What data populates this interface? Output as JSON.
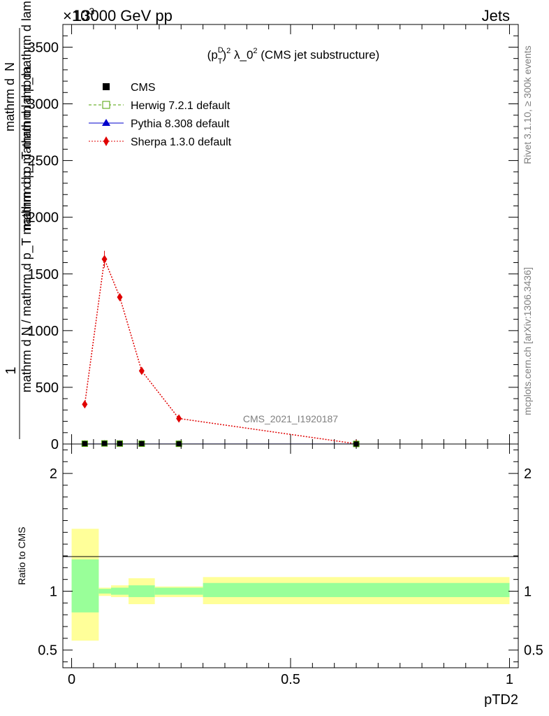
{
  "header": {
    "left": "13000 GeV pp",
    "right": "Jets",
    "exponent": "×10",
    "exponent_power": "3"
  },
  "plot_title": {
    "a": "(p",
    "sup": "D",
    "sub": "T",
    "b": ")",
    "c": "2",
    "d": " λ_0",
    "e": "2",
    "f": " (CMS jet substructure)"
  },
  "side_labels": {
    "rivet": "Rivet 3.1.10, ≥ 300k events",
    "mcplots": "mcplots.cern.ch [arXiv:1306.3436]",
    "analysis": "CMS_2021_I1920187"
  },
  "ylabel_main": {
    "numerator": "1",
    "denominator_line1": "mathrm d N / mathrm d p_T mathrm d p_mathrm d lambda",
    "mathrm_top": "mathrm d",
    "N_top": "N",
    "denominator_top": "mathrm d p_T mathrm d p_mathrm d lambda"
  },
  "ylabel_ratio": "Ratio to CMS",
  "xlabel": "pTD2",
  "legend": [
    {
      "name": "CMS",
      "color": "#000000",
      "marker": "square-filled",
      "line": "none"
    },
    {
      "name": "Herwig 7.2.1 default",
      "color": "#4da000",
      "marker": "square-open",
      "line": "dashed"
    },
    {
      "name": "Pythia 8.308 default",
      "color": "#0000cc",
      "marker": "triangle",
      "line": "solid"
    },
    {
      "name": "Sherpa 1.3.0 default",
      "color": "#e00000",
      "marker": "diamond",
      "line": "dotted"
    }
  ],
  "chart_data": [
    {
      "type": "line",
      "panel": "main",
      "x": [
        0.03,
        0.075,
        0.11,
        0.16,
        0.245,
        0.65
      ],
      "ylim": [
        0,
        3700
      ],
      "xlim": [
        -0.02,
        1.02
      ],
      "y_ticks": [
        0,
        500,
        1000,
        1500,
        2000,
        2500,
        3000,
        3500
      ],
      "y_tick_labels": [
        "0",
        "500",
        "1000",
        "1500",
        "2000",
        "2500",
        "3000",
        "3500"
      ],
      "series": [
        {
          "name": "CMS",
          "values": [
            3,
            5,
            4,
            3,
            2,
            0.5
          ]
        },
        {
          "name": "Herwig 7.2.1 default",
          "values": [
            3,
            5,
            4,
            3,
            2,
            0.5
          ]
        },
        {
          "name": "Pythia 8.308 default",
          "values": [
            3,
            5,
            4,
            3,
            2,
            0.5
          ]
        },
        {
          "name": "Sherpa 1.3.0 default",
          "values": [
            350,
            1630,
            1295,
            645,
            225,
            2
          ]
        }
      ]
    },
    {
      "type": "area",
      "panel": "ratio",
      "ylim": [
        0.35,
        2.25
      ],
      "xlim": [
        -0.02,
        1.02
      ],
      "x_ticks": [
        0,
        0.5,
        1
      ],
      "x_tick_labels": [
        "0",
        "0.5",
        "1"
      ],
      "y_ticks": [
        0.5,
        1,
        2
      ],
      "y_tick_labels": [
        "0.5",
        "1",
        "2"
      ],
      "bands": [
        {
          "x0": 0.0,
          "x1": 0.062,
          "yellow": [
            0.58,
            1.53
          ],
          "green": [
            0.82,
            1.27
          ]
        },
        {
          "x0": 0.062,
          "x1": 0.09,
          "yellow": [
            0.96,
            1.03
          ],
          "green": [
            0.98,
            1.02
          ]
        },
        {
          "x0": 0.09,
          "x1": 0.13,
          "yellow": [
            0.95,
            1.05
          ],
          "green": [
            0.97,
            1.03
          ]
        },
        {
          "x0": 0.13,
          "x1": 0.19,
          "yellow": [
            0.89,
            1.11
          ],
          "green": [
            0.95,
            1.05
          ]
        },
        {
          "x0": 0.19,
          "x1": 0.3,
          "yellow": [
            0.95,
            1.04
          ],
          "green": [
            0.97,
            1.03
          ]
        },
        {
          "x0": 0.3,
          "x1": 1.0,
          "yellow": [
            0.89,
            1.12
          ],
          "green": [
            0.95,
            1.07
          ]
        }
      ],
      "reference_line": 1
    }
  ]
}
